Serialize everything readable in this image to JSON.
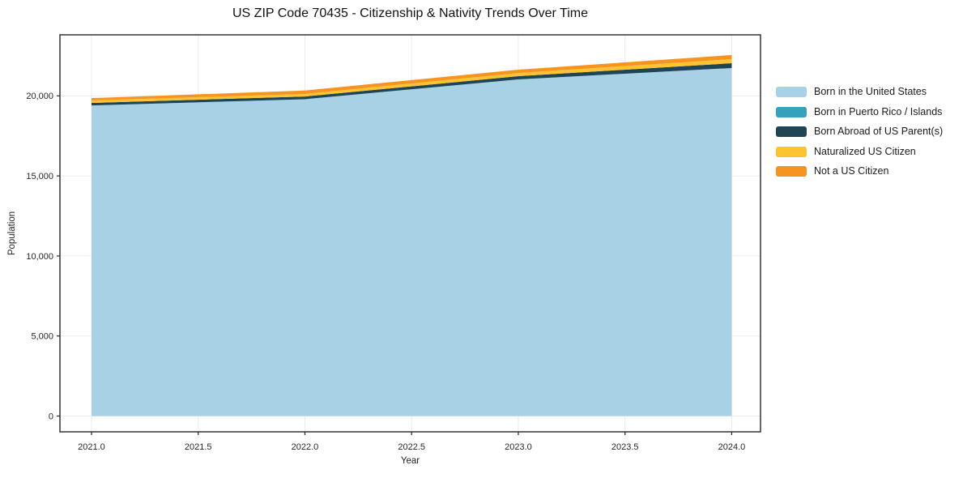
{
  "chart_data": {
    "type": "area",
    "stacked": true,
    "title": "US ZIP Code 70435 - Citizenship & Nativity Trends Over Time",
    "xlabel": "Year",
    "ylabel": "Population",
    "x": [
      2021,
      2022,
      2023,
      2024
    ],
    "series": [
      {
        "name": "Born in the United States",
        "color": "#a7d2e6",
        "values": [
          19400,
          19790,
          21030,
          21740
        ]
      },
      {
        "name": "Born in Puerto Rico / Islands",
        "color": "#35a1bc",
        "values": [
          0,
          0,
          0,
          0
        ]
      },
      {
        "name": "Born Abroad of US Parent(s)",
        "color": "#1f4555",
        "values": [
          160,
          170,
          200,
          300
        ]
      },
      {
        "name": "Naturalized US Citizen",
        "color": "#fdc330",
        "values": [
          150,
          160,
          200,
          255
        ]
      },
      {
        "name": "Not a US Citizen",
        "color": "#f7941f",
        "values": [
          150,
          215,
          205,
          255
        ]
      }
    ],
    "totals": [
      19860,
      20335,
      21635,
      22550
    ],
    "xticks": {
      "values": [
        2021.0,
        2021.5,
        2022.0,
        2022.5,
        2023.0,
        2023.5,
        2024.0
      ],
      "labels": [
        "2021.0",
        "2021.5",
        "2022.0",
        "2022.5",
        "2023.0",
        "2023.5",
        "2024.0"
      ]
    },
    "yticks": {
      "values": [
        0,
        5000,
        10000,
        15000,
        20000
      ],
      "labels": [
        "0",
        "5,000",
        "10,000",
        "15,000",
        "20,000"
      ]
    },
    "xlim": [
      2020.852,
      2024.135
    ],
    "ylim": [
      -987,
      23812
    ],
    "grid": true,
    "grid_color": "#ebebeb",
    "spine_color": "#262626",
    "legend_position": "outside-right"
  }
}
